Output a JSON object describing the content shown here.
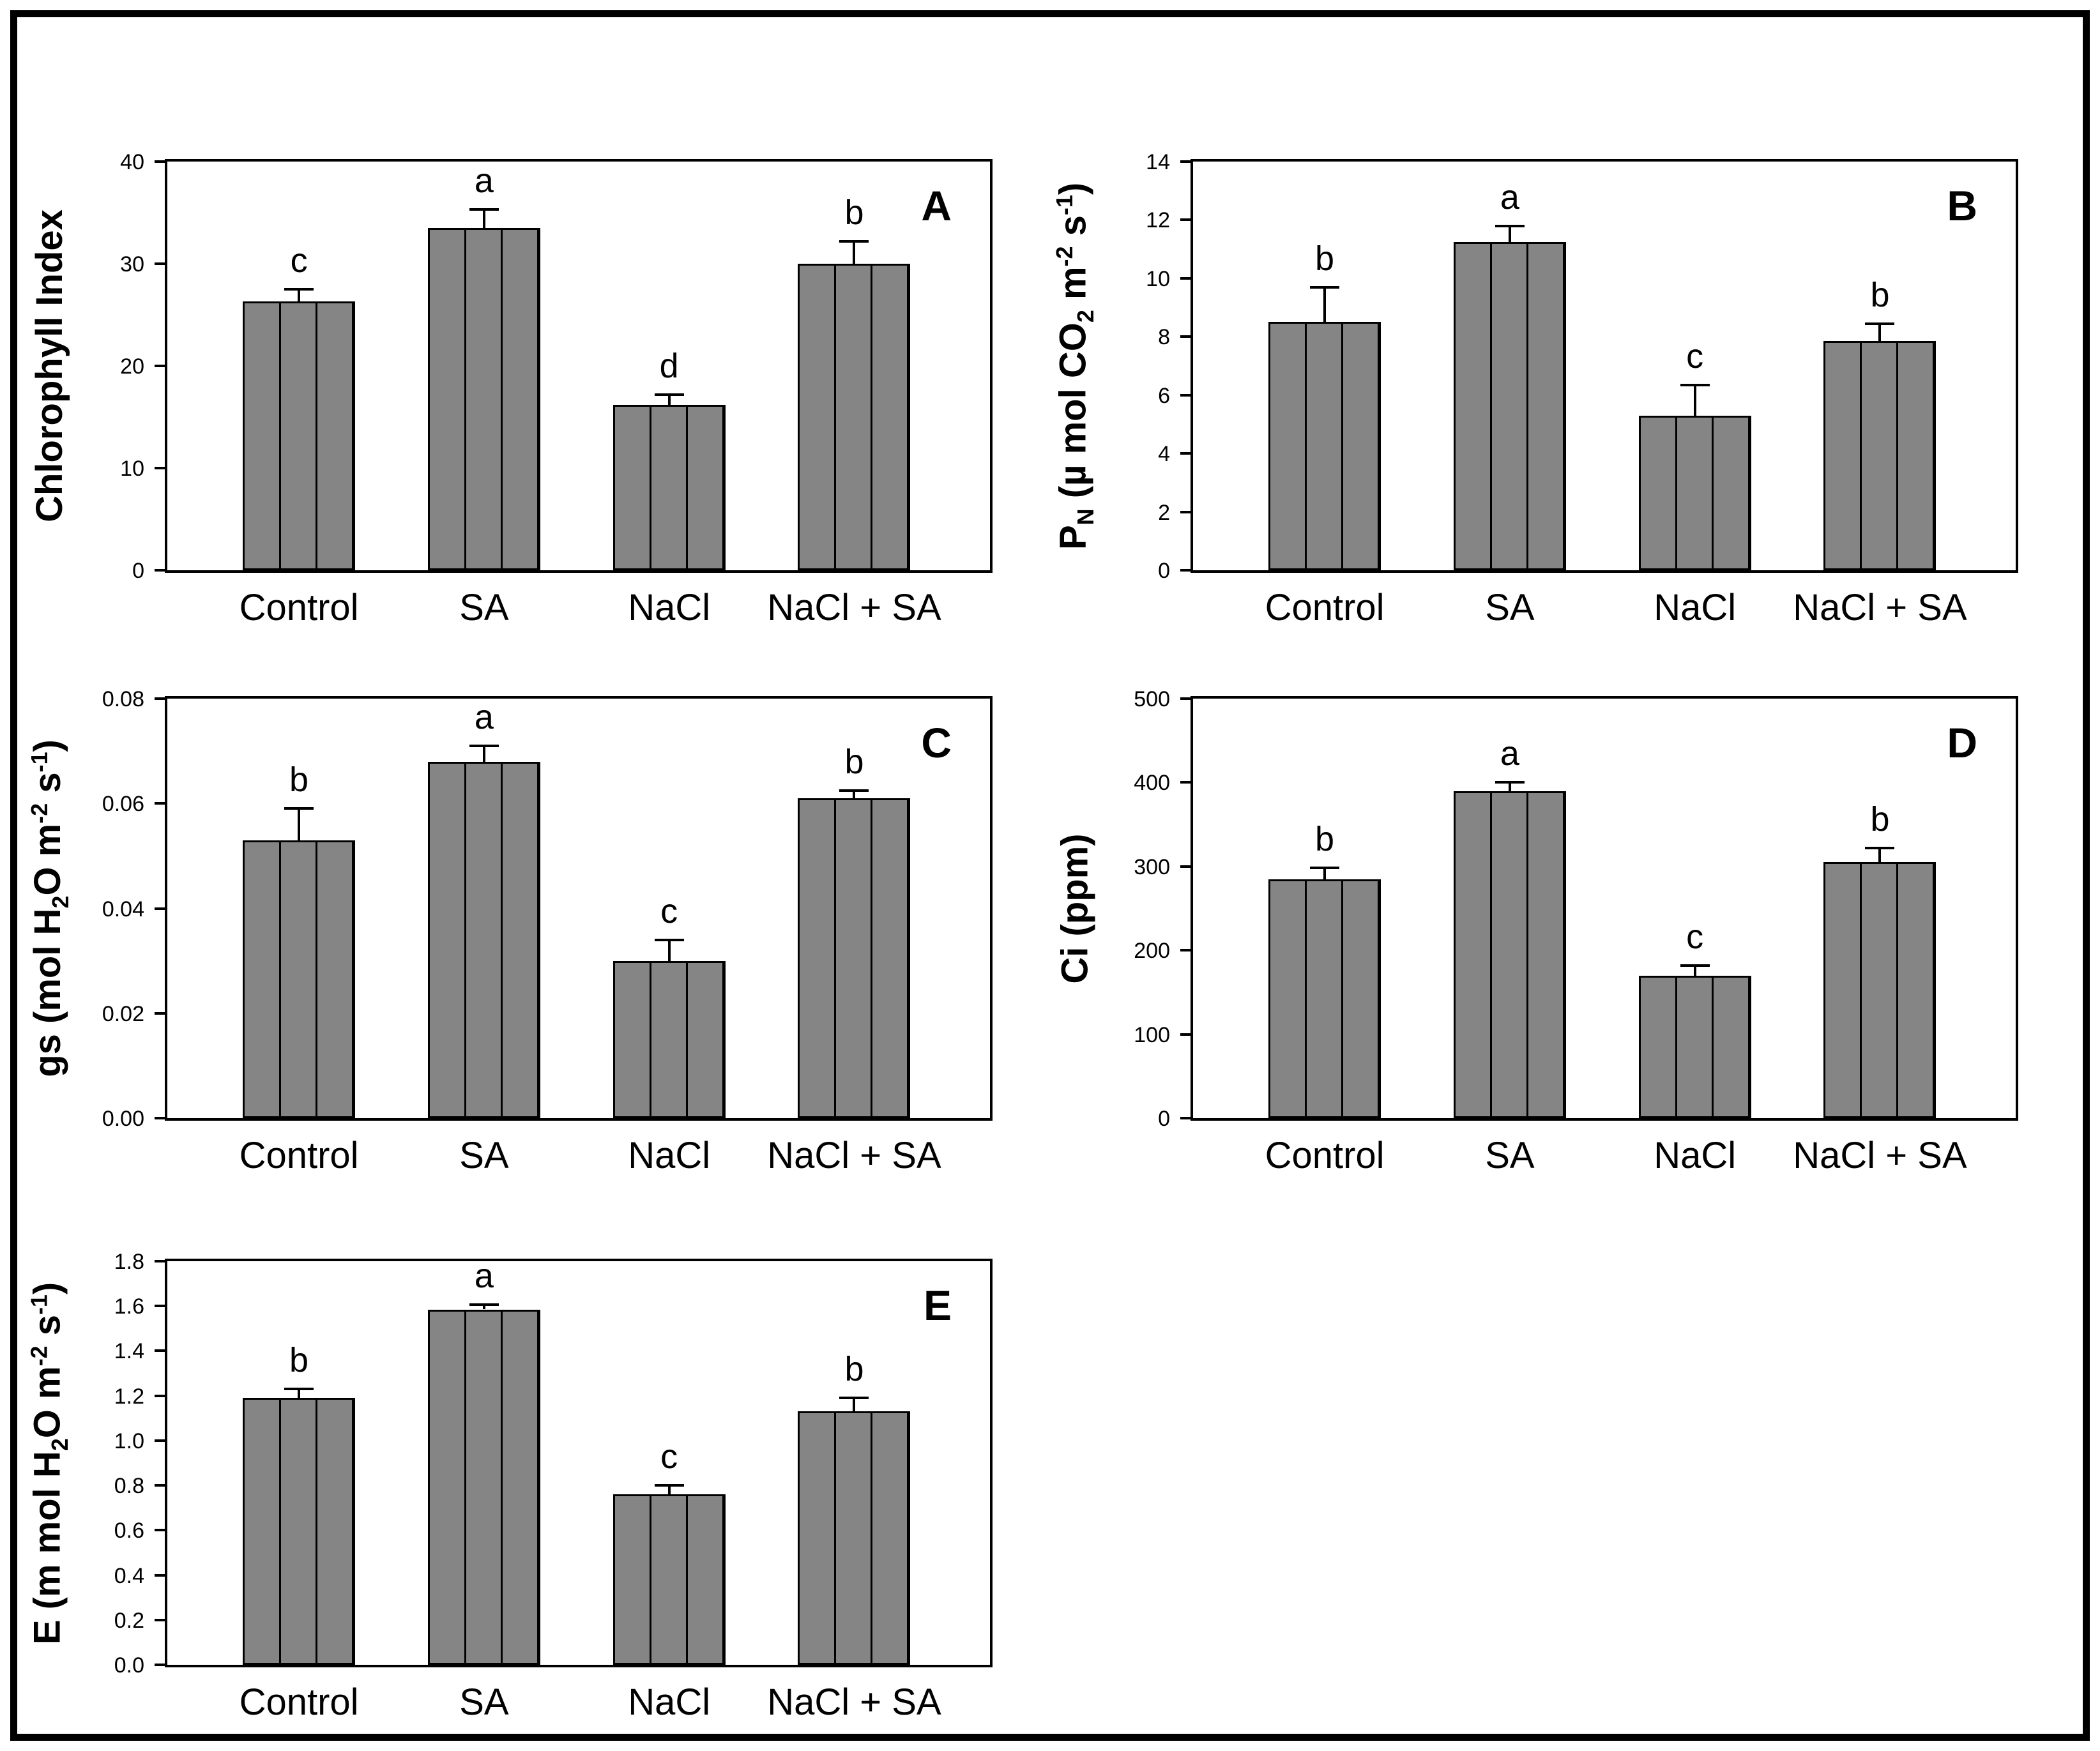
{
  "figure": {
    "background": "#ffffff",
    "outer_border_color": "#000000",
    "axis_color": "#000000",
    "bar_fill": "#858585",
    "bar_stripe_color": "#000000",
    "bar_stroke": "#000000",
    "text_color": "#000000",
    "treatments": [
      "Control",
      "SA",
      "NaCl",
      "NaCl + SA"
    ]
  },
  "chart_data": [
    {
      "type": "bar",
      "panel_label": "A",
      "ylabel_plain": "Chlorophyll Index",
      "ylabel_segments": [
        {
          "t": "Chlorophyll Index"
        }
      ],
      "ylim": [
        0,
        40
      ],
      "grid": false,
      "legend": null,
      "yticks": [
        {
          "value": 0,
          "label": "0"
        },
        {
          "value": 10,
          "label": "10"
        },
        {
          "value": 20,
          "label": "20"
        },
        {
          "value": 30,
          "label": "30"
        },
        {
          "value": 40,
          "label": "40"
        }
      ],
      "categories": [
        "Control",
        "SA",
        "NaCl",
        "NaCl + SA"
      ],
      "values": [
        26.3,
        33.5,
        16.2,
        30.0
      ],
      "errors": [
        1.2,
        1.8,
        1.0,
        2.2
      ],
      "sig_letters": [
        "c",
        "a",
        "d",
        "b"
      ]
    },
    {
      "type": "bar",
      "panel_label": "B",
      "ylabel_plain": "PN (u mol CO2 m-2 s-1)",
      "ylabel_segments": [
        {
          "t": "P"
        },
        {
          "t": "N",
          "sub": true
        },
        {
          "t": " (µ mol CO"
        },
        {
          "t": "2",
          "sub": true
        },
        {
          "t": " m"
        },
        {
          "t": "-2",
          "sup": true
        },
        {
          "t": " s"
        },
        {
          "t": "-1",
          "sup": true
        },
        {
          "t": ")"
        }
      ],
      "ylim": [
        0,
        14
      ],
      "grid": false,
      "legend": null,
      "yticks": [
        {
          "value": 0,
          "label": "0"
        },
        {
          "value": 2,
          "label": "2"
        },
        {
          "value": 4,
          "label": "4"
        },
        {
          "value": 6,
          "label": "6"
        },
        {
          "value": 8,
          "label": "8"
        },
        {
          "value": 10,
          "label": "10"
        },
        {
          "value": 12,
          "label": "12"
        },
        {
          "value": 14,
          "label": "14"
        }
      ],
      "categories": [
        "Control",
        "SA",
        "NaCl",
        "NaCl + SA"
      ],
      "values": [
        8.5,
        11.25,
        5.3,
        7.85
      ],
      "errors": [
        1.2,
        0.55,
        1.05,
        0.6
      ],
      "sig_letters": [
        "b",
        "a",
        "c",
        "b"
      ]
    },
    {
      "type": "bar",
      "panel_label": "C",
      "ylabel_plain": "gs (mol H2O m-2 s-1)",
      "ylabel_segments": [
        {
          "t": "gs (mol H"
        },
        {
          "t": "2",
          "sub": true
        },
        {
          "t": "O m"
        },
        {
          "t": "-2",
          "sup": true
        },
        {
          "t": " s"
        },
        {
          "t": "-1",
          "sup": true
        },
        {
          "t": ")"
        }
      ],
      "ylim": [
        0,
        0.08
      ],
      "grid": false,
      "legend": null,
      "yticks": [
        {
          "value": 0,
          "label": "0.00"
        },
        {
          "value": 0.02,
          "label": "0.02"
        },
        {
          "value": 0.04,
          "label": "0.04"
        },
        {
          "value": 0.06,
          "label": "0.06"
        },
        {
          "value": 0.08,
          "label": "0.08"
        }
      ],
      "categories": [
        "Control",
        "SA",
        "NaCl",
        "NaCl + SA"
      ],
      "values": [
        0.053,
        0.068,
        0.03,
        0.061
      ],
      "errors": [
        0.006,
        0.003,
        0.004,
        0.0015
      ],
      "sig_letters": [
        "b",
        "a",
        "c",
        "b"
      ]
    },
    {
      "type": "bar",
      "panel_label": "D",
      "ylabel_plain": "Ci (ppm)",
      "ylabel_segments": [
        {
          "t": "Ci (ppm)"
        }
      ],
      "ylim": [
        0,
        500
      ],
      "grid": false,
      "legend": null,
      "yticks": [
        {
          "value": 0,
          "label": "0"
        },
        {
          "value": 100,
          "label": "100"
        },
        {
          "value": 200,
          "label": "200"
        },
        {
          "value": 300,
          "label": "300"
        },
        {
          "value": 400,
          "label": "400"
        },
        {
          "value": 500,
          "label": "500"
        }
      ],
      "categories": [
        "Control",
        "SA",
        "NaCl",
        "NaCl + SA"
      ],
      "values": [
        285,
        390,
        170,
        305
      ],
      "errors": [
        13,
        10,
        12,
        17
      ],
      "sig_letters": [
        "b",
        "a",
        "c",
        "b"
      ]
    },
    {
      "type": "bar",
      "panel_label": "E",
      "ylabel_plain": "E (m mol H2O m-2 s-1)",
      "ylabel_segments": [
        {
          "t": "E (m mol H"
        },
        {
          "t": "2",
          "sub": true
        },
        {
          "t": "O m"
        },
        {
          "t": "-2",
          "sup": true
        },
        {
          "t": " s"
        },
        {
          "t": "-1",
          "sup": true
        },
        {
          "t": ")"
        }
      ],
      "ylim": [
        0,
        1.8
      ],
      "grid": false,
      "legend": null,
      "yticks": [
        {
          "value": 0,
          "label": "0.0"
        },
        {
          "value": 0.2,
          "label": "0.2"
        },
        {
          "value": 0.4,
          "label": "0.4"
        },
        {
          "value": 0.6,
          "label": "0.6"
        },
        {
          "value": 0.8,
          "label": "0.8"
        },
        {
          "value": 1.0,
          "label": "1.0"
        },
        {
          "value": 1.2,
          "label": "1.2"
        },
        {
          "value": 1.4,
          "label": "1.4"
        },
        {
          "value": 1.6,
          "label": "1.6"
        },
        {
          "value": 1.8,
          "label": "1.8"
        }
      ],
      "categories": [
        "Control",
        "SA",
        "NaCl",
        "NaCl + SA"
      ],
      "values": [
        1.19,
        1.585,
        0.76,
        1.13
      ],
      "errors": [
        0.04,
        0.02,
        0.04,
        0.06
      ],
      "sig_letters": [
        "b",
        "a",
        "c",
        "b"
      ]
    }
  ]
}
